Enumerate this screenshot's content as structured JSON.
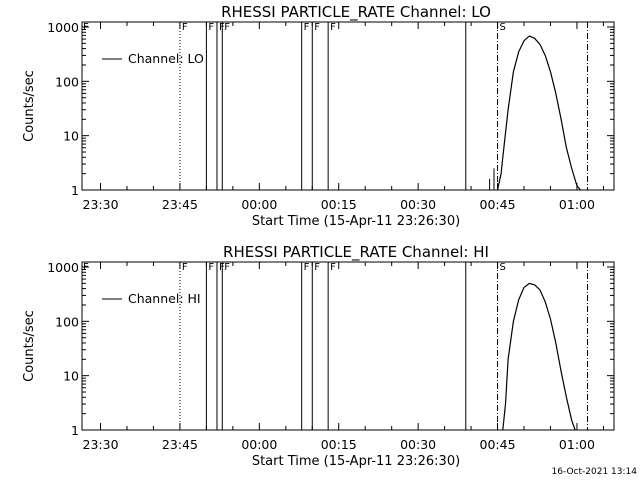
{
  "footer_timestamp": "16-Oct-2021 13:14",
  "chart_data": [
    {
      "type": "line",
      "title": "RHESSI PARTICLE_RATE Channel: LO",
      "xlabel": "Start Time (15-Apr-11 23:26:30)",
      "ylabel": "Counts/sec",
      "y_scale": "log",
      "ylim": [
        1,
        1000
      ],
      "xlim": [
        "23:26:30",
        "01:07:00"
      ],
      "x_ticks": [
        "23:30",
        "23:45",
        "00:00",
        "00:15",
        "00:30",
        "00:45",
        "01:00"
      ],
      "y_ticks": [
        "1",
        "10",
        "100",
        "1000"
      ],
      "legend": {
        "position": "top-left",
        "entries": [
          "Channel: LO"
        ]
      },
      "series": [
        {
          "name": "Channel: LO",
          "x": [
            "00:45:00",
            "00:45:40",
            "00:46:00",
            "00:47:00",
            "00:48:00",
            "00:49:00",
            "00:50:00",
            "00:51:00",
            "00:52:00",
            "00:53:00",
            "00:54:00",
            "00:55:00",
            "00:56:00",
            "00:57:00",
            "00:58:00",
            "00:59:00",
            "01:00:00",
            "01:00:40"
          ],
          "values": [
            1,
            2,
            4,
            30,
            150,
            350,
            560,
            680,
            620,
            480,
            300,
            150,
            60,
            20,
            6,
            2.5,
            1.2,
            1
          ]
        }
      ],
      "vlines": [
        {
          "time": "23:45:00",
          "style": "dotted",
          "label": "F"
        },
        {
          "time": "23:50:00",
          "style": "solid",
          "label": "F"
        },
        {
          "time": "23:52:00",
          "style": "solid",
          "label": "F"
        },
        {
          "time": "23:53:00",
          "style": "solid",
          "label": "F"
        },
        {
          "time": "00:08:00",
          "style": "solid",
          "label": "F"
        },
        {
          "time": "00:10:00",
          "style": "solid",
          "label": "F"
        },
        {
          "time": "00:13:00",
          "style": "solid",
          "label": "F"
        },
        {
          "time": "00:39:00",
          "style": "solid",
          "label": ""
        },
        {
          "time": "00:45:00",
          "style": "dashdot",
          "label": "S"
        },
        {
          "time": "01:02:00",
          "style": "dashdot",
          "label": ""
        }
      ],
      "extra_marks": [
        {
          "time": "23:26:30",
          "label": "F"
        }
      ]
    },
    {
      "type": "line",
      "title": "RHESSI PARTICLE_RATE Channel: HI",
      "xlabel": "Start Time (15-Apr-11 23:26:30)",
      "ylabel": "Counts/sec",
      "y_scale": "log",
      "ylim": [
        1,
        1000
      ],
      "xlim": [
        "23:26:30",
        "01:07:00"
      ],
      "x_ticks": [
        "23:30",
        "23:45",
        "00:00",
        "00:15",
        "00:30",
        "00:45",
        "01:00"
      ],
      "y_ticks": [
        "1",
        "10",
        "100",
        "1000"
      ],
      "legend": {
        "position": "top-left",
        "entries": [
          "Channel: HI"
        ]
      },
      "series": [
        {
          "name": "Channel: HI",
          "x": [
            "00:46:00",
            "00:46:30",
            "00:47:00",
            "00:48:00",
            "00:49:00",
            "00:50:00",
            "00:51:00",
            "00:52:00",
            "00:53:00",
            "00:54:00",
            "00:55:00",
            "00:56:00",
            "00:57:00",
            "00:58:00",
            "00:59:00",
            "00:59:40"
          ],
          "values": [
            1,
            3,
            20,
            100,
            250,
            420,
            500,
            470,
            380,
            230,
            110,
            40,
            12,
            4,
            1.5,
            1
          ]
        }
      ],
      "vlines": [
        {
          "time": "23:45:00",
          "style": "dotted",
          "label": "F"
        },
        {
          "time": "23:50:00",
          "style": "solid",
          "label": "F"
        },
        {
          "time": "23:52:00",
          "style": "solid",
          "label": "F"
        },
        {
          "time": "23:53:00",
          "style": "solid",
          "label": "F"
        },
        {
          "time": "00:08:00",
          "style": "solid",
          "label": "F"
        },
        {
          "time": "00:10:00",
          "style": "solid",
          "label": "F"
        },
        {
          "time": "00:13:00",
          "style": "solid",
          "label": "F"
        },
        {
          "time": "00:39:00",
          "style": "solid",
          "label": ""
        },
        {
          "time": "00:45:00",
          "style": "dashdot",
          "label": "S"
        },
        {
          "time": "01:02:00",
          "style": "dashdot",
          "label": ""
        }
      ],
      "extra_marks": [
        {
          "time": "23:26:30",
          "label": "F"
        }
      ]
    }
  ]
}
